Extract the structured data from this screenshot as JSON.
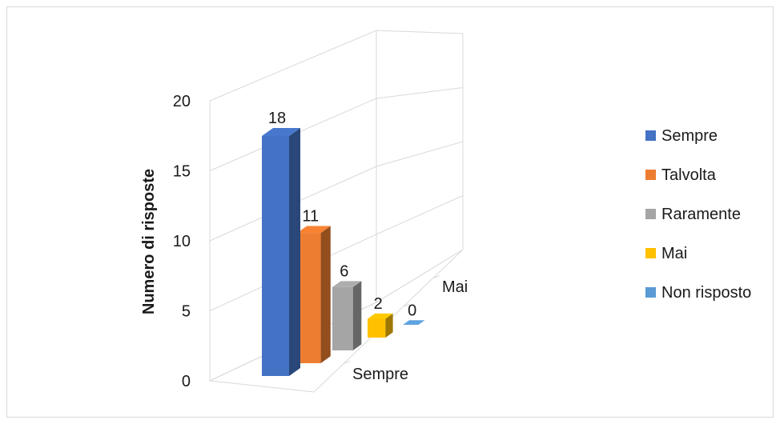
{
  "chart_data": {
    "type": "bar",
    "view": "3d-column",
    "title": "",
    "ylabel": "Numero di risposte",
    "ylim": [
      0,
      20
    ],
    "yticks": [
      0,
      5,
      10,
      15,
      20
    ],
    "depth_axis_labels": [
      "Sempre",
      "Mai"
    ],
    "series": [
      {
        "name": "Sempre",
        "value": 18,
        "color": "#4472c4"
      },
      {
        "name": "Talvolta",
        "value": 11,
        "color": "#ed7d31"
      },
      {
        "name": "Raramente",
        "value": 6,
        "color": "#a5a5a5"
      },
      {
        "name": "Mai",
        "value": 2,
        "color": "#ffc000"
      },
      {
        "name": "Non risposto",
        "value": 0,
        "color": "#5b9bd5"
      }
    ],
    "data_labels": true,
    "grid": true,
    "legend_position": "right"
  }
}
